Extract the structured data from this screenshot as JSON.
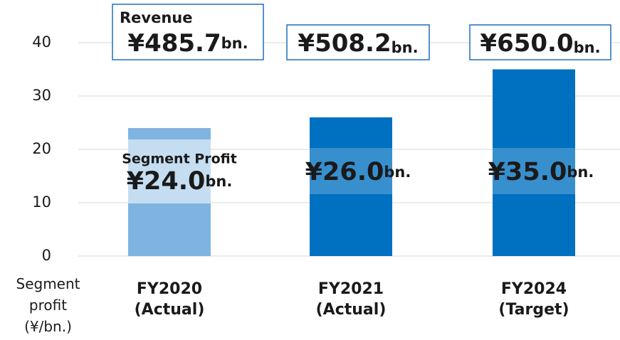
{
  "chart_data": {
    "type": "bar",
    "y_label": "Segment profit (¥/bn.)",
    "categories": [
      "FY2020 (Actual)",
      "FY2021 (Actual)",
      "FY2024 (Target)"
    ],
    "values": [
      24.0,
      26.0,
      35.0
    ],
    "value_labels": [
      "¥24.0",
      "¥26.0",
      "¥35.0"
    ],
    "value_unit": "bn.",
    "value_caption": "Segment Profit",
    "colors": [
      "#7fb4e0",
      "#0070c0",
      "#0070c0"
    ],
    "revenue": {
      "name": "Revenue",
      "labels": [
        "¥485.7",
        "¥508.2",
        "¥650.0"
      ],
      "unit": "bn."
    },
    "ylim": [
      0,
      40
    ],
    "yticks": [
      0,
      10,
      20,
      30,
      40
    ],
    "grid": true
  }
}
